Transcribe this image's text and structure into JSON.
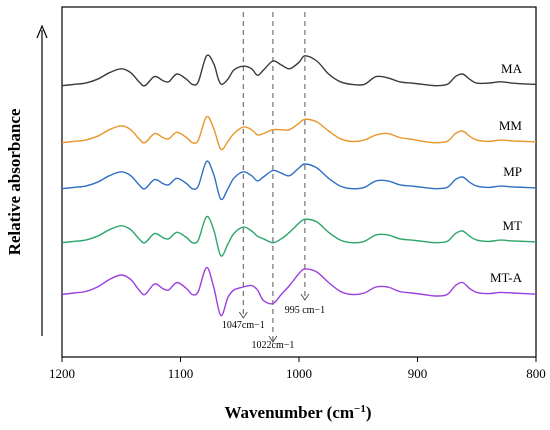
{
  "chart_data": {
    "type": "line",
    "xlabel": "Wavenumber (cm−1)",
    "ylabel": "Relative absorbance",
    "xlim": [
      1200,
      800
    ],
    "x_reversed": true,
    "x_ticks": [
      "1200",
      "1100",
      "1000",
      "900",
      "800"
    ],
    "y_ticks": [],
    "grid": false,
    "series": [
      {
        "name": "MA",
        "color": "#3a3a3a",
        "offset": 4,
        "points": [
          [
            1200,
            0.05
          ],
          [
            1190,
            0.1
          ],
          [
            1180,
            0.15
          ],
          [
            1170,
            0.3
          ],
          [
            1160,
            0.55
          ],
          [
            1150,
            0.7
          ],
          [
            1142,
            0.55
          ],
          [
            1135,
            0.2
          ],
          [
            1130,
            0.05
          ],
          [
            1122,
            0.4
          ],
          [
            1115,
            0.25
          ],
          [
            1110,
            0.2
          ],
          [
            1103,
            0.5
          ],
          [
            1095,
            0.3
          ],
          [
            1090,
            0.1
          ],
          [
            1085,
            0.2
          ],
          [
            1078,
            1.2
          ],
          [
            1072,
            0.9
          ],
          [
            1068,
            0.3
          ],
          [
            1065,
            0.1
          ],
          [
            1060,
            0.3
          ],
          [
            1055,
            0.65
          ],
          [
            1047,
            0.8
          ],
          [
            1040,
            0.7
          ],
          [
            1035,
            0.45
          ],
          [
            1030,
            0.65
          ],
          [
            1022,
            1.0
          ],
          [
            1015,
            0.85
          ],
          [
            1008,
            0.7
          ],
          [
            1000,
            0.95
          ],
          [
            995,
            1.2
          ],
          [
            985,
            1.0
          ],
          [
            975,
            0.5
          ],
          [
            965,
            0.2
          ],
          [
            955,
            0.1
          ],
          [
            945,
            0.1
          ],
          [
            935,
            0.4
          ],
          [
            925,
            0.35
          ],
          [
            915,
            0.2
          ],
          [
            905,
            0.15
          ],
          [
            895,
            0.1
          ],
          [
            885,
            0.05
          ],
          [
            875,
            0.1
          ],
          [
            868,
            0.4
          ],
          [
            862,
            0.5
          ],
          [
            856,
            0.3
          ],
          [
            850,
            0.15
          ],
          [
            840,
            0.15
          ],
          [
            830,
            0.2
          ],
          [
            820,
            0.15
          ],
          [
            810,
            0.12
          ],
          [
            800,
            0.1
          ]
        ]
      },
      {
        "name": "MM",
        "color": "#e8962a",
        "offset": 3,
        "points": [
          [
            1200,
            0.05
          ],
          [
            1190,
            0.1
          ],
          [
            1180,
            0.15
          ],
          [
            1170,
            0.3
          ],
          [
            1160,
            0.55
          ],
          [
            1150,
            0.7
          ],
          [
            1142,
            0.55
          ],
          [
            1135,
            0.2
          ],
          [
            1130,
            0.05
          ],
          [
            1122,
            0.4
          ],
          [
            1115,
            0.25
          ],
          [
            1110,
            0.2
          ],
          [
            1103,
            0.45
          ],
          [
            1095,
            0.25
          ],
          [
            1090,
            0.05
          ],
          [
            1085,
            0.15
          ],
          [
            1078,
            1.05
          ],
          [
            1072,
            0.6
          ],
          [
            1066,
            -0.2
          ],
          [
            1060,
            0.1
          ],
          [
            1055,
            0.4
          ],
          [
            1047,
            0.65
          ],
          [
            1040,
            0.55
          ],
          [
            1035,
            0.35
          ],
          [
            1030,
            0.4
          ],
          [
            1022,
            0.55
          ],
          [
            1015,
            0.55
          ],
          [
            1008,
            0.55
          ],
          [
            1000,
            0.8
          ],
          [
            995,
            0.95
          ],
          [
            985,
            0.85
          ],
          [
            975,
            0.5
          ],
          [
            965,
            0.2
          ],
          [
            955,
            0.1
          ],
          [
            945,
            0.15
          ],
          [
            935,
            0.35
          ],
          [
            925,
            0.4
          ],
          [
            915,
            0.25
          ],
          [
            905,
            0.18
          ],
          [
            895,
            0.1
          ],
          [
            885,
            0.05
          ],
          [
            875,
            0.1
          ],
          [
            868,
            0.4
          ],
          [
            862,
            0.5
          ],
          [
            856,
            0.3
          ],
          [
            850,
            0.15
          ],
          [
            840,
            0.1
          ],
          [
            830,
            0.15
          ],
          [
            820,
            0.12
          ],
          [
            810,
            0.1
          ],
          [
            800,
            0.08
          ]
        ]
      },
      {
        "name": "MP",
        "color": "#2f6fc4",
        "offset": 2,
        "points": [
          [
            1200,
            0.05
          ],
          [
            1190,
            0.1
          ],
          [
            1180,
            0.15
          ],
          [
            1170,
            0.3
          ],
          [
            1160,
            0.55
          ],
          [
            1150,
            0.7
          ],
          [
            1142,
            0.55
          ],
          [
            1135,
            0.2
          ],
          [
            1130,
            0.05
          ],
          [
            1122,
            0.4
          ],
          [
            1115,
            0.25
          ],
          [
            1110,
            0.2
          ],
          [
            1103,
            0.45
          ],
          [
            1095,
            0.25
          ],
          [
            1090,
            0.05
          ],
          [
            1085,
            0.15
          ],
          [
            1078,
            1.1
          ],
          [
            1072,
            0.6
          ],
          [
            1066,
            -0.35
          ],
          [
            1060,
            0.05
          ],
          [
            1055,
            0.45
          ],
          [
            1047,
            0.7
          ],
          [
            1040,
            0.55
          ],
          [
            1035,
            0.35
          ],
          [
            1030,
            0.5
          ],
          [
            1022,
            0.75
          ],
          [
            1015,
            0.65
          ],
          [
            1008,
            0.55
          ],
          [
            1000,
            0.85
          ],
          [
            995,
            1.0
          ],
          [
            985,
            0.85
          ],
          [
            975,
            0.45
          ],
          [
            965,
            0.15
          ],
          [
            955,
            0.05
          ],
          [
            945,
            0.1
          ],
          [
            935,
            0.35
          ],
          [
            925,
            0.35
          ],
          [
            915,
            0.2
          ],
          [
            905,
            0.15
          ],
          [
            895,
            0.1
          ],
          [
            885,
            0.05
          ],
          [
            875,
            0.1
          ],
          [
            868,
            0.4
          ],
          [
            862,
            0.5
          ],
          [
            856,
            0.3
          ],
          [
            850,
            0.15
          ],
          [
            840,
            0.1
          ],
          [
            830,
            0.15
          ],
          [
            820,
            0.12
          ],
          [
            810,
            0.1
          ],
          [
            800,
            0.08
          ]
        ]
      },
      {
        "name": "MT",
        "color": "#2ea66a",
        "offset": 1,
        "points": [
          [
            1200,
            0.05
          ],
          [
            1190,
            0.1
          ],
          [
            1180,
            0.15
          ],
          [
            1170,
            0.3
          ],
          [
            1160,
            0.55
          ],
          [
            1150,
            0.7
          ],
          [
            1142,
            0.55
          ],
          [
            1135,
            0.2
          ],
          [
            1130,
            0.05
          ],
          [
            1122,
            0.4
          ],
          [
            1115,
            0.25
          ],
          [
            1110,
            0.2
          ],
          [
            1103,
            0.45
          ],
          [
            1095,
            0.25
          ],
          [
            1090,
            0.05
          ],
          [
            1085,
            0.15
          ],
          [
            1078,
            1.05
          ],
          [
            1072,
            0.55
          ],
          [
            1066,
            -0.45
          ],
          [
            1060,
            0.0
          ],
          [
            1055,
            0.4
          ],
          [
            1047,
            0.65
          ],
          [
            1040,
            0.5
          ],
          [
            1035,
            0.3
          ],
          [
            1030,
            0.2
          ],
          [
            1022,
            0.05
          ],
          [
            1015,
            0.2
          ],
          [
            1008,
            0.45
          ],
          [
            1000,
            0.8
          ],
          [
            995,
            0.95
          ],
          [
            985,
            0.85
          ],
          [
            975,
            0.45
          ],
          [
            965,
            0.15
          ],
          [
            955,
            0.05
          ],
          [
            945,
            0.1
          ],
          [
            935,
            0.35
          ],
          [
            925,
            0.35
          ],
          [
            915,
            0.2
          ],
          [
            905,
            0.15
          ],
          [
            895,
            0.1
          ],
          [
            885,
            0.05
          ],
          [
            875,
            0.1
          ],
          [
            868,
            0.4
          ],
          [
            862,
            0.5
          ],
          [
            856,
            0.3
          ],
          [
            850,
            0.15
          ],
          [
            840,
            0.1
          ],
          [
            830,
            0.15
          ],
          [
            820,
            0.12
          ],
          [
            810,
            0.1
          ],
          [
            800,
            0.08
          ]
        ]
      },
      {
        "name": "MT-A",
        "color": "#9b3fe0",
        "offset": 0,
        "points": [
          [
            1200,
            0.05
          ],
          [
            1190,
            0.1
          ],
          [
            1180,
            0.15
          ],
          [
            1170,
            0.3
          ],
          [
            1160,
            0.55
          ],
          [
            1150,
            0.7
          ],
          [
            1142,
            0.55
          ],
          [
            1135,
            0.2
          ],
          [
            1130,
            0.05
          ],
          [
            1122,
            0.4
          ],
          [
            1115,
            0.25
          ],
          [
            1110,
            0.2
          ],
          [
            1103,
            0.45
          ],
          [
            1095,
            0.25
          ],
          [
            1090,
            0.05
          ],
          [
            1085,
            0.15
          ],
          [
            1078,
            0.95
          ],
          [
            1072,
            0.3
          ],
          [
            1066,
            -0.65
          ],
          [
            1060,
            -0.05
          ],
          [
            1055,
            0.2
          ],
          [
            1047,
            0.3
          ],
          [
            1040,
            0.35
          ],
          [
            1035,
            0.2
          ],
          [
            1030,
            -0.15
          ],
          [
            1022,
            -0.25
          ],
          [
            1015,
            0.05
          ],
          [
            1008,
            0.35
          ],
          [
            1000,
            0.75
          ],
          [
            995,
            0.9
          ],
          [
            985,
            0.8
          ],
          [
            975,
            0.45
          ],
          [
            965,
            0.15
          ],
          [
            955,
            0.05
          ],
          [
            945,
            0.1
          ],
          [
            935,
            0.3
          ],
          [
            925,
            0.3
          ],
          [
            915,
            0.15
          ],
          [
            905,
            0.1
          ],
          [
            895,
            0.05
          ],
          [
            885,
            0.0
          ],
          [
            875,
            0.05
          ],
          [
            868,
            0.35
          ],
          [
            862,
            0.45
          ],
          [
            856,
            0.25
          ],
          [
            850,
            0.12
          ],
          [
            840,
            0.08
          ],
          [
            830,
            0.12
          ],
          [
            820,
            0.1
          ],
          [
            810,
            0.08
          ],
          [
            800,
            0.06
          ]
        ]
      }
    ],
    "annotations": [
      {
        "x": 1047,
        "label": "1047cm−1"
      },
      {
        "x": 1022,
        "label": "1022cm−1"
      },
      {
        "x": 995,
        "label": "995 cm−1"
      }
    ]
  }
}
